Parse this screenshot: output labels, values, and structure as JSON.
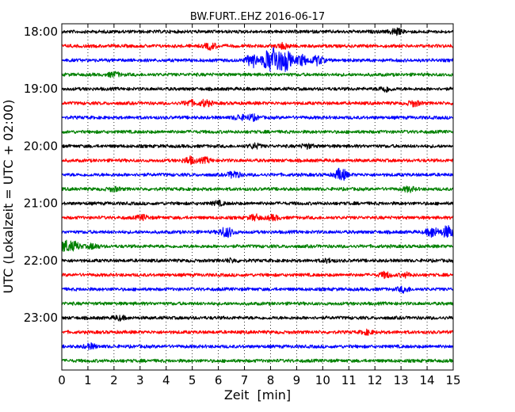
{
  "chart_data": {
    "type": "line",
    "title": "BW.FURT..EHZ 2016-06-17",
    "xlabel": "Zeit  [min]",
    "ylabel": "UTC (Lokalzeit = UTC + 02:00)",
    "xlim": [
      0,
      15
    ],
    "x_ticks": [
      "0",
      "1",
      "2",
      "3",
      "4",
      "5",
      "6",
      "7",
      "8",
      "9",
      "10",
      "11",
      "12",
      "13",
      "14",
      "15"
    ],
    "y_tick_labels": [
      "18:00",
      "19:00",
      "20:00",
      "21:00",
      "22:00",
      "23:00"
    ],
    "grid": "vertical dotted",
    "colors": [
      "#000000",
      "#ff0000",
      "#0000ff",
      "#008000"
    ],
    "traces": [
      {
        "start": "18:00",
        "color": "#000000",
        "bursts": [
          [
            12.8,
            0.8
          ]
        ]
      },
      {
        "start": "18:15",
        "color": "#ff0000",
        "bursts": [
          [
            5.7,
            0.8
          ],
          [
            8.5,
            0.7
          ]
        ]
      },
      {
        "start": "18:30",
        "color": "#0000ff",
        "bursts": [
          [
            7.3,
            1.8
          ],
          [
            7.9,
            2.2
          ],
          [
            8.2,
            3.2
          ],
          [
            8.6,
            2.6
          ],
          [
            9.2,
            1.4
          ],
          [
            9.8,
            1.2
          ]
        ]
      },
      {
        "start": "18:45",
        "color": "#008000",
        "bursts": [
          [
            2.0,
            0.6
          ]
        ]
      },
      {
        "start": "19:00",
        "color": "#000000",
        "bursts": [
          [
            12.4,
            0.7
          ]
        ]
      },
      {
        "start": "19:15",
        "color": "#ff0000",
        "bursts": [
          [
            4.9,
            0.7
          ],
          [
            5.5,
            0.8
          ],
          [
            13.5,
            0.7
          ]
        ]
      },
      {
        "start": "19:30",
        "color": "#0000ff",
        "bursts": [
          [
            6.8,
            0.6
          ],
          [
            7.3,
            0.7
          ]
        ]
      },
      {
        "start": "19:45",
        "color": "#008000",
        "bursts": []
      },
      {
        "start": "20:00",
        "color": "#000000",
        "bursts": [
          [
            7.4,
            0.6
          ],
          [
            9.4,
            0.5
          ]
        ]
      },
      {
        "start": "20:15",
        "color": "#ff0000",
        "bursts": [
          [
            4.9,
            0.9
          ],
          [
            5.5,
            0.6
          ]
        ]
      },
      {
        "start": "20:30",
        "color": "#0000ff",
        "bursts": [
          [
            6.6,
            0.9
          ],
          [
            10.7,
            1.6
          ]
        ]
      },
      {
        "start": "20:45",
        "color": "#008000",
        "bursts": [
          [
            2.0,
            0.5
          ],
          [
            13.3,
            0.6
          ]
        ]
      },
      {
        "start": "21:00",
        "color": "#000000",
        "bursts": [
          [
            6.0,
            0.5
          ]
        ]
      },
      {
        "start": "21:15",
        "color": "#ff0000",
        "bursts": [
          [
            3.1,
            0.6
          ],
          [
            7.4,
            0.7
          ],
          [
            8.1,
            0.6
          ]
        ]
      },
      {
        "start": "21:30",
        "color": "#0000ff",
        "bursts": [
          [
            6.2,
            0.7
          ],
          [
            6.4,
            0.8
          ],
          [
            14.2,
            1.3
          ],
          [
            14.8,
            1.6
          ]
        ]
      },
      {
        "start": "21:45",
        "color": "#008000",
        "bursts": [
          [
            0.1,
            1.5
          ],
          [
            0.5,
            1.0
          ],
          [
            1.2,
            0.6
          ]
        ]
      },
      {
        "start": "22:00",
        "color": "#000000",
        "bursts": [
          [
            6.5,
            0.4
          ],
          [
            10.2,
            0.4
          ]
        ]
      },
      {
        "start": "22:15",
        "color": "#ff0000",
        "bursts": [
          [
            12.4,
            0.7
          ],
          [
            13.2,
            0.5
          ]
        ]
      },
      {
        "start": "22:30",
        "color": "#0000ff",
        "bursts": [
          [
            13.1,
            0.7
          ]
        ]
      },
      {
        "start": "22:45",
        "color": "#008000",
        "bursts": []
      },
      {
        "start": "23:00",
        "color": "#000000",
        "bursts": [
          [
            2.2,
            0.5
          ]
        ]
      },
      {
        "start": "23:15",
        "color": "#ff0000",
        "bursts": [
          [
            11.7,
            0.5
          ]
        ]
      },
      {
        "start": "23:30",
        "color": "#0000ff",
        "bursts": [
          [
            1.1,
            0.6
          ]
        ]
      },
      {
        "start": "23:45",
        "color": "#008000",
        "bursts": []
      }
    ]
  }
}
